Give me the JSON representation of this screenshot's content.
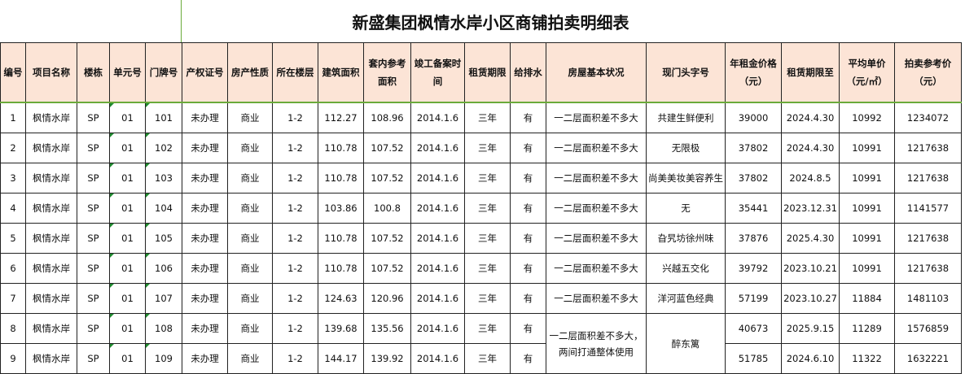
{
  "title": "新盛集团枫情水岸小区商铺拍卖明细表",
  "headers": [
    "编号",
    "项目名称",
    "楼栋",
    "单元号",
    "门牌号",
    "产权证号",
    "房产性质",
    "所在楼层",
    "建筑面积",
    "套内参考面积",
    "竣工备案时间",
    "租赁期限",
    "给排水",
    "房屋基本状况",
    "现门头字号",
    "年租金价格（元）",
    "租赁期限至",
    "平均单价（元/㎡）",
    "拍卖参考价（元）"
  ],
  "rows": [
    [
      "1",
      "枫情水岸",
      "SP",
      "01",
      "101",
      "未办理",
      "商业",
      "1-2",
      "112.27",
      "108.96",
      "2014.1.6",
      "三年",
      "有",
      "一二层面积差不多大",
      "共建生鲜便利",
      "39000",
      "2024.4.30",
      "10992",
      "1234072"
    ],
    [
      "2",
      "枫情水岸",
      "SP",
      "01",
      "102",
      "未办理",
      "商业",
      "1-2",
      "110.78",
      "107.52",
      "2014.1.6",
      "三年",
      "有",
      "一二层面积差不多大",
      "无限极",
      "37802",
      "2024.4.30",
      "10991",
      "1217638"
    ],
    [
      "3",
      "枫情水岸",
      "SP",
      "01",
      "103",
      "未办理",
      "商业",
      "1-2",
      "110.78",
      "107.52",
      "2014.1.6",
      "三年",
      "有",
      "一二层面积差不多大",
      "尚美美妆美容养生",
      "37802",
      "2024.8.5",
      "10991",
      "1217638"
    ],
    [
      "4",
      "枫情水岸",
      "SP",
      "01",
      "104",
      "未办理",
      "商业",
      "1-2",
      "103.86",
      "100.8",
      "2014.1.6",
      "三年",
      "有",
      "一二层面积差不多大",
      "无",
      "35441",
      "2023.12.31",
      "10991",
      "1141577"
    ],
    [
      "5",
      "枫情水岸",
      "SP",
      "01",
      "105",
      "未办理",
      "商业",
      "1-2",
      "110.78",
      "107.52",
      "2014.1.6",
      "三年",
      "有",
      "一二层面积差不多大",
      "旮旯坊徐州味",
      "37876",
      "2025.4.30",
      "10991",
      "1217638"
    ],
    [
      "6",
      "枫情水岸",
      "SP",
      "01",
      "106",
      "未办理",
      "商业",
      "1-2",
      "110.78",
      "107.52",
      "2014.1.6",
      "三年",
      "有",
      "一二层面积差不多大",
      "兴越五交化",
      "39792",
      "2023.10.21",
      "10991",
      "1217638"
    ],
    [
      "7",
      "枫情水岸",
      "SP",
      "01",
      "107",
      "未办理",
      "商业",
      "1-2",
      "124.63",
      "120.96",
      "2014.1.6",
      "三年",
      "有",
      "一二层面积差不多大",
      "洋河蓝色经典",
      "57199",
      "2023.10.27",
      "11884",
      "1481103"
    ],
    [
      "8",
      "枫情水岸",
      "SP",
      "01",
      "108",
      "未办理",
      "商业",
      "1-2",
      "139.68",
      "135.56",
      "2014.1.6",
      "三年",
      "有",
      "一二层面积差不多大，两间打通整体使用",
      "醉东篱",
      "40673",
      "2025.9.15",
      "11289",
      "1576859"
    ],
    [
      "9",
      "枫情水岸",
      "SP",
      "01",
      "109",
      "未办理",
      "商业",
      "1-2",
      "144.17",
      "139.92",
      "2014.1.6",
      "三年",
      "有",
      "",
      "",
      "51785",
      "2024.6.10",
      "11322",
      "1632221"
    ]
  ]
}
